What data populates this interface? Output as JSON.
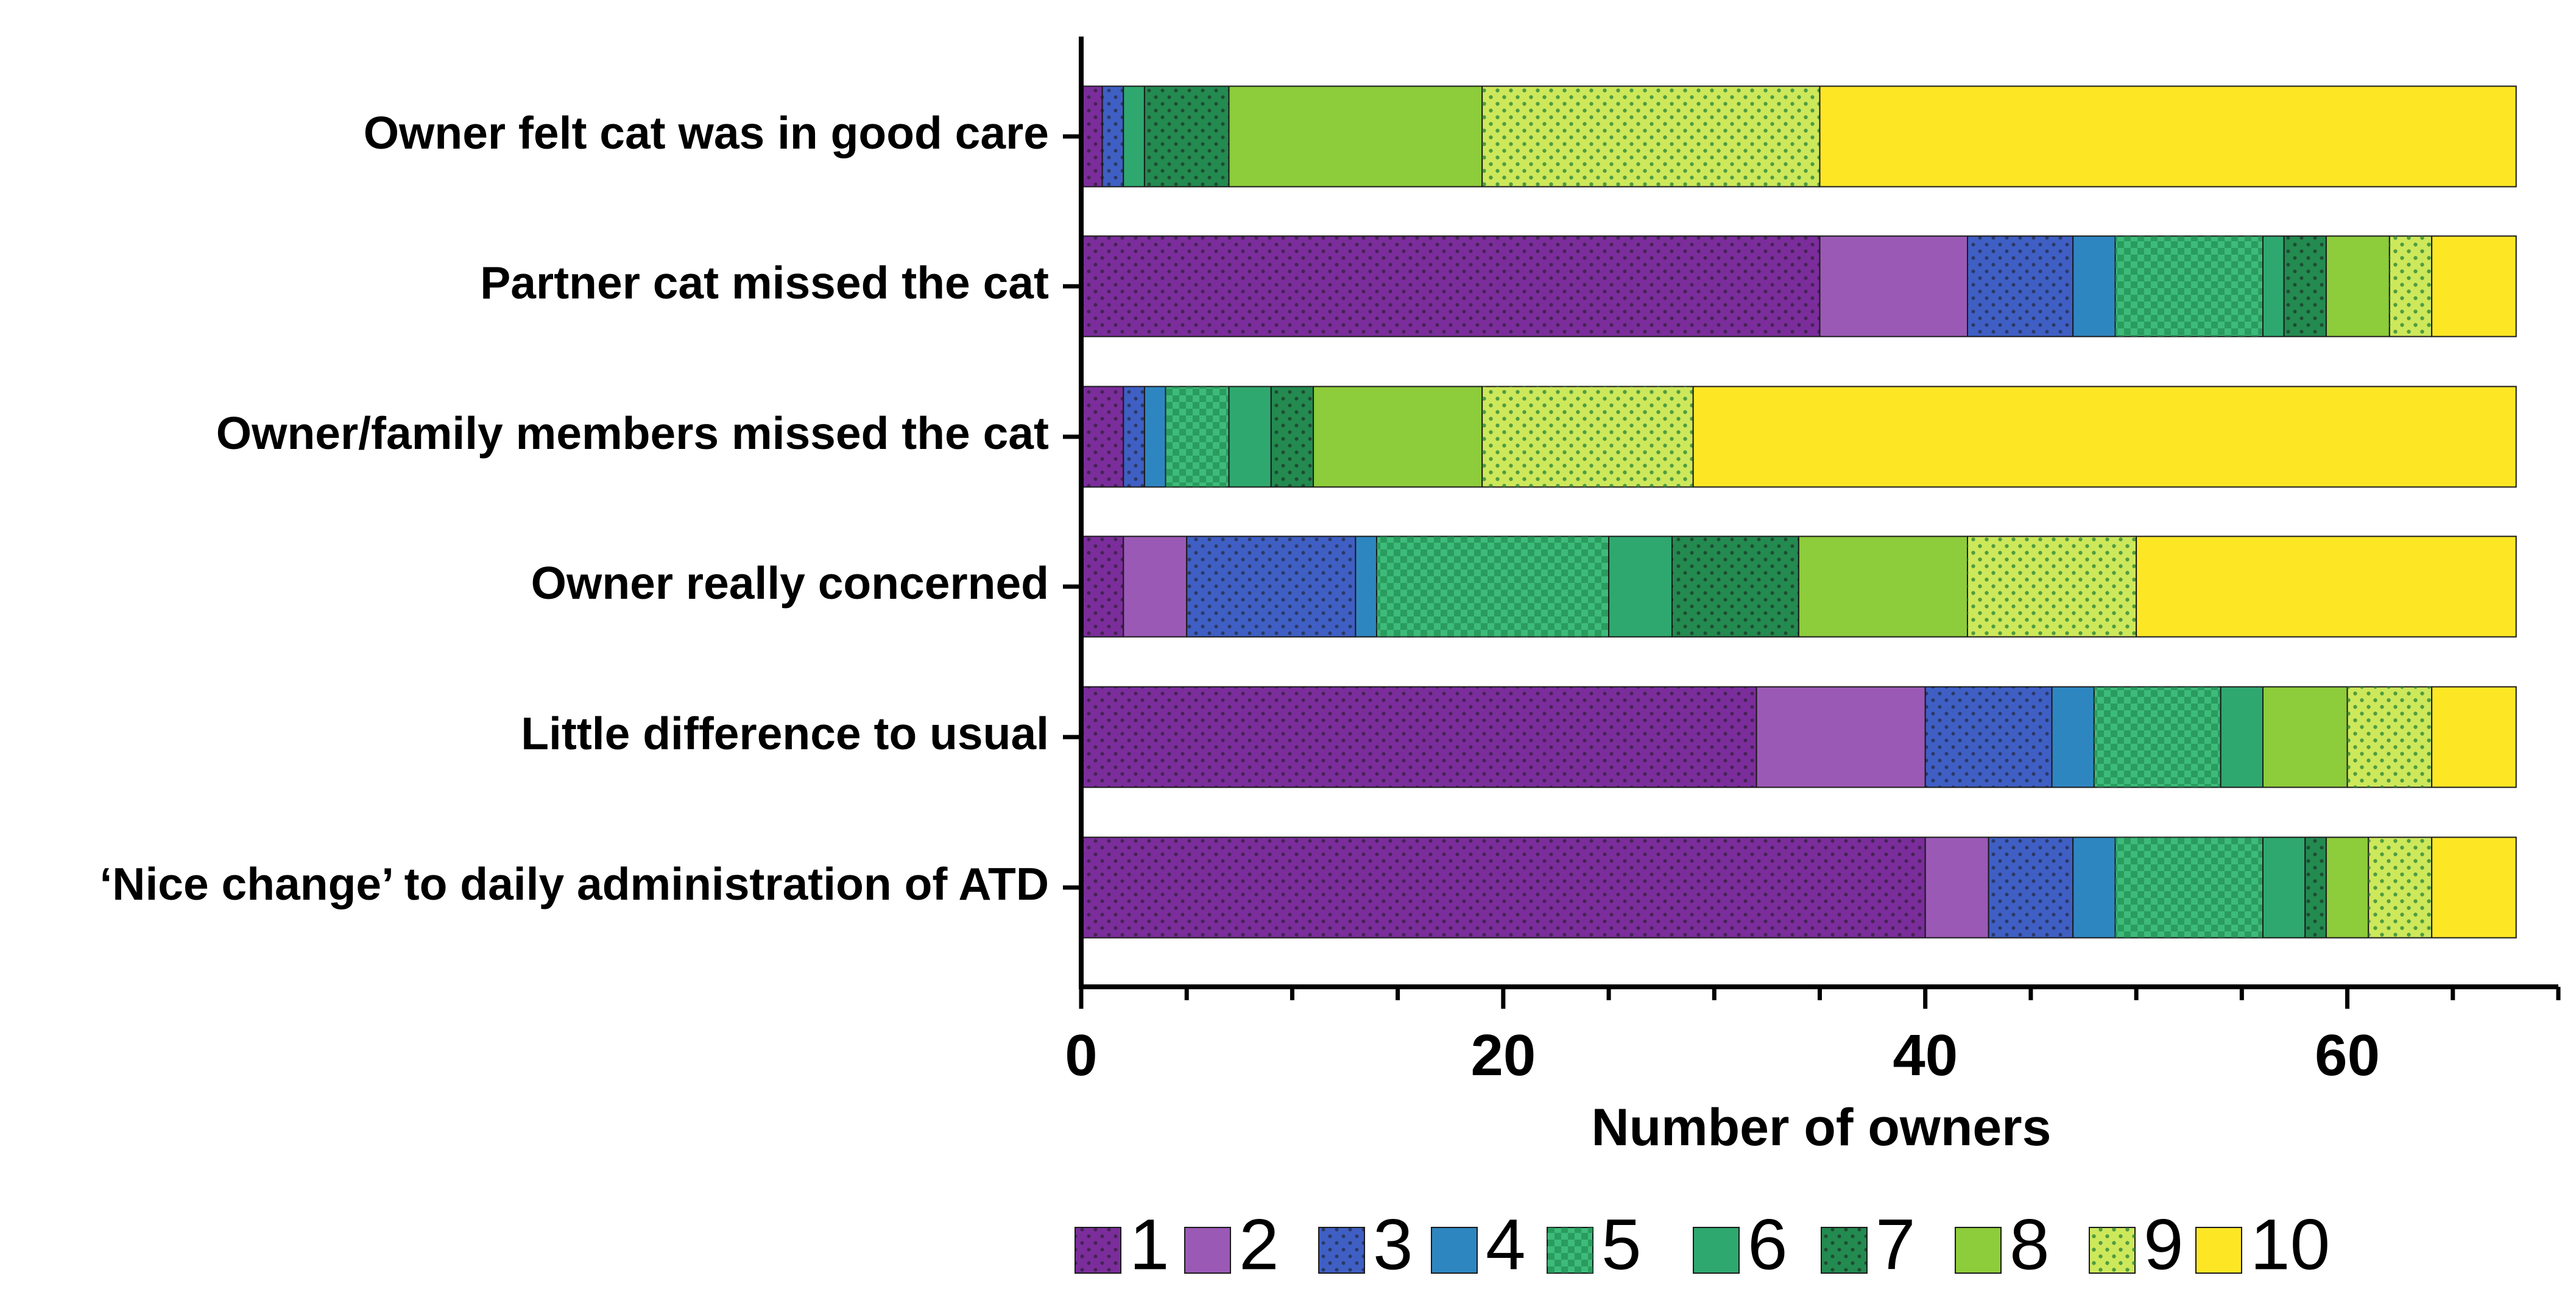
{
  "chart_data": {
    "type": "bar",
    "orientation": "horizontal",
    "stacked": true,
    "title": "",
    "xlabel": "Number of owners",
    "ylabel": "",
    "xlim": [
      0,
      70
    ],
    "xticks": [
      0,
      20,
      40,
      60
    ],
    "grid": false,
    "legend_position": "bottom",
    "categories": [
      "Owner felt cat was in good care",
      "Partner cat missed the cat",
      "Owner/family members missed the cat",
      "Owner really concerned",
      "Little difference to usual",
      "‘Nice change’ to daily administration of ATD"
    ],
    "series": [
      {
        "name": "1",
        "color": "#7b2d9b",
        "pattern": "dots-dark",
        "values": [
          1,
          35,
          2,
          2,
          32,
          40
        ]
      },
      {
        "name": "2",
        "color": "#9b59b6",
        "pattern": "solid",
        "values": [
          0,
          7,
          0,
          3,
          8,
          3
        ]
      },
      {
        "name": "3",
        "color": "#3f5fc4",
        "pattern": "dots-dark",
        "values": [
          1,
          5,
          1,
          8,
          6,
          4
        ]
      },
      {
        "name": "4",
        "color": "#2e86c1",
        "pattern": "solid",
        "values": [
          0,
          2,
          1,
          1,
          2,
          2
        ]
      },
      {
        "name": "5",
        "color": "#3dbb7a",
        "pattern": "checker",
        "values": [
          0,
          7,
          3,
          11,
          6,
          7
        ]
      },
      {
        "name": "6",
        "color": "#2fa86f",
        "pattern": "solid",
        "values": [
          1,
          1,
          2,
          3,
          2,
          2
        ]
      },
      {
        "name": "7",
        "color": "#238a50",
        "pattern": "dots-dark",
        "values": [
          4,
          2,
          2,
          6,
          0,
          1
        ]
      },
      {
        "name": "8",
        "color": "#8dcc3a",
        "pattern": "solid",
        "values": [
          12,
          3,
          8,
          8,
          4,
          2
        ]
      },
      {
        "name": "9",
        "color": "#cde85a",
        "pattern": "dots-green",
        "values": [
          16,
          2,
          10,
          8,
          4,
          3
        ]
      },
      {
        "name": "10",
        "color": "#fde725",
        "pattern": "solid",
        "values": [
          33,
          4,
          39,
          18,
          4,
          4
        ]
      }
    ]
  }
}
